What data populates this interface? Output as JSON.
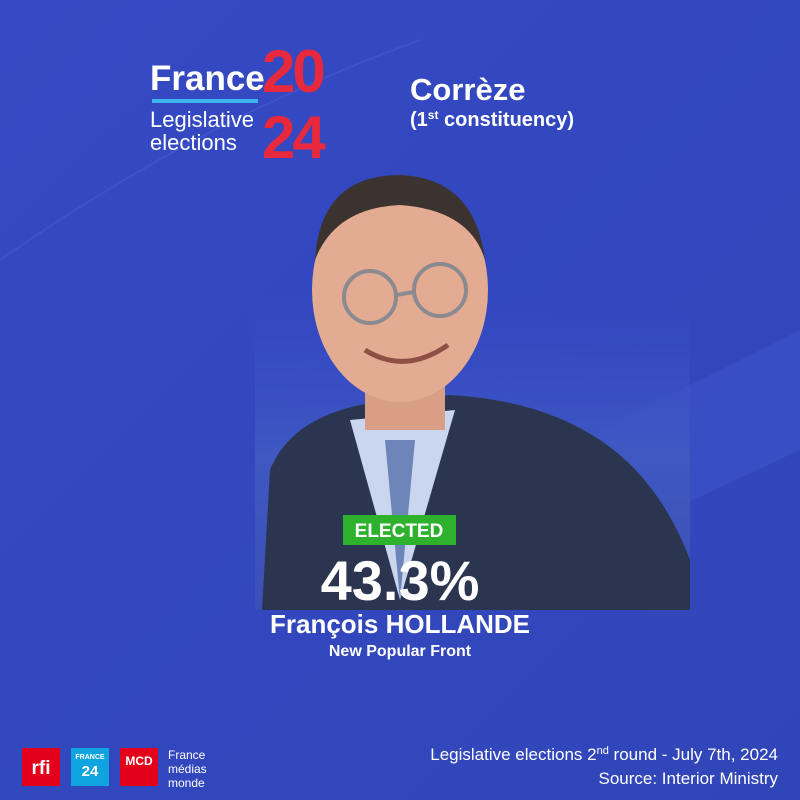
{
  "header": {
    "brand": "France",
    "year_top": "20",
    "year_bottom": "24",
    "subtitle_line1": "Legislative",
    "subtitle_line2": "elections"
  },
  "location": {
    "department": "Corrèze",
    "constituency_open": "(1",
    "constituency_sup": "st",
    "constituency_rest": " constituency)"
  },
  "result": {
    "badge": "ELECTED",
    "percentage": "43.3%",
    "candidate": "François HOLLANDE",
    "party": "New Popular Front"
  },
  "footer": {
    "line1_start": "Legislative elections 2",
    "line1_sup": "nd",
    "line1_end": " round - July 7th, 2024",
    "line2": "Source: Interior Ministry"
  },
  "logos": {
    "rfi": "rfi",
    "france24_top": "FRANCE",
    "france24_bottom": "24",
    "mcd": "MCD",
    "fmm_line1": "France",
    "fmm_line2": "médias",
    "fmm_line3": "monde"
  }
}
